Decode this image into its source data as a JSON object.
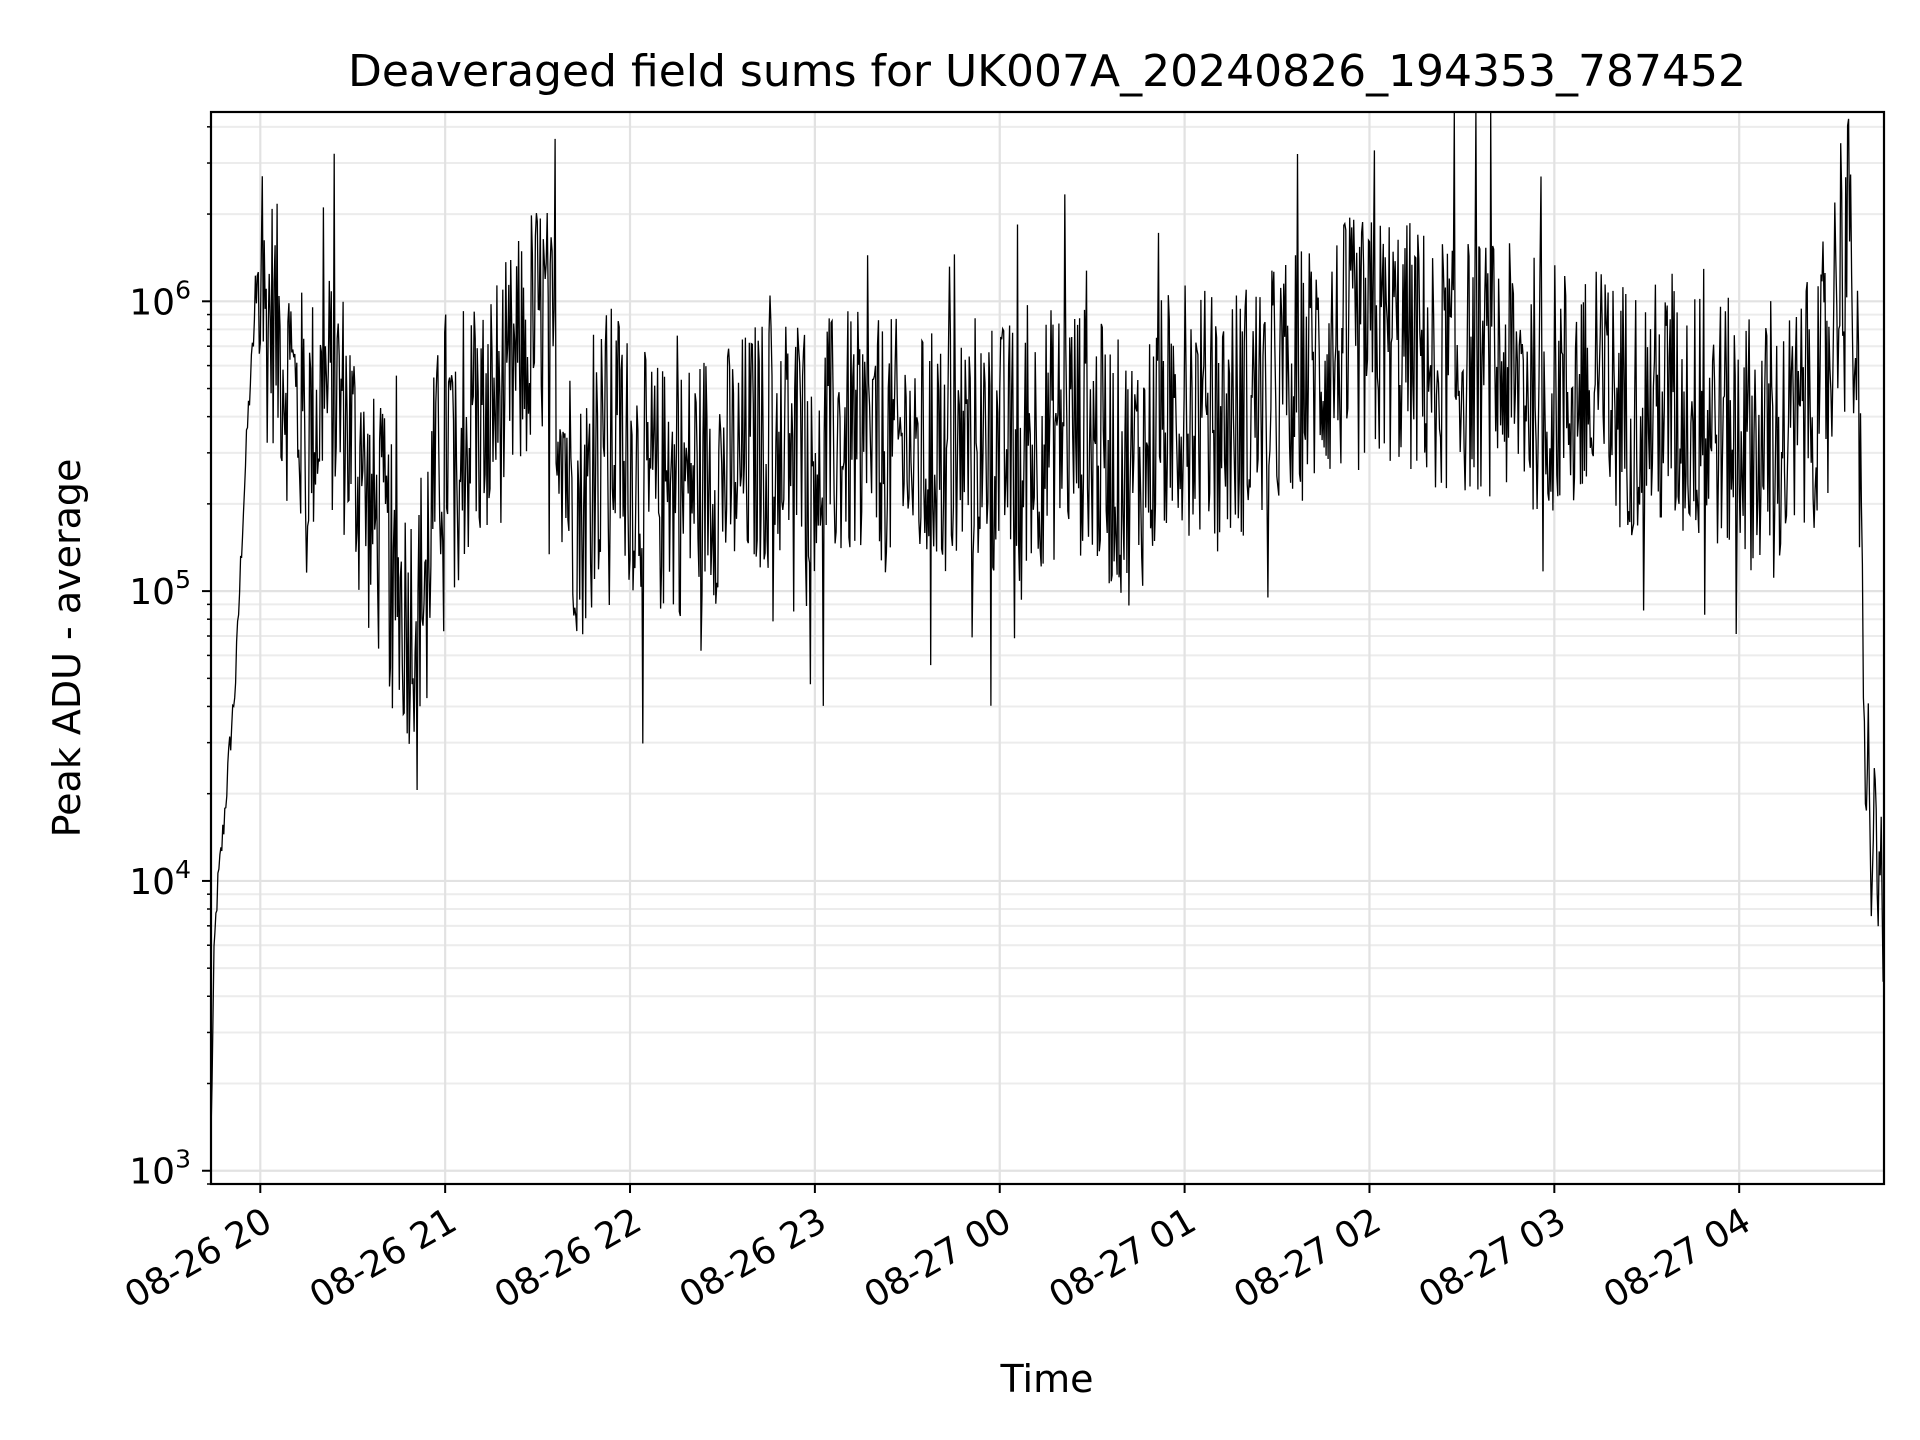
{
  "chart_data": {
    "type": "line",
    "title": "Deaveraged field sums for UK007A_20240826_194353_787452",
    "xlabel": "Time",
    "ylabel": "Peak ADU - average",
    "x_scale": "time",
    "y_scale": "log",
    "xlim": [
      "2024-08-26 19:44",
      "2024-08-27 04:47"
    ],
    "ylim": [
      900,
      4500000
    ],
    "grid": true,
    "legend": "none",
    "x_ticks": [
      {
        "value": "2024-08-26 20:00",
        "label": "08-26 20"
      },
      {
        "value": "2024-08-26 21:00",
        "label": "08-26 21"
      },
      {
        "value": "2024-08-26 22:00",
        "label": "08-26 22"
      },
      {
        "value": "2024-08-26 23:00",
        "label": "08-26 23"
      },
      {
        "value": "2024-08-27 00:00",
        "label": "08-27 00"
      },
      {
        "value": "2024-08-27 01:00",
        "label": "08-27 01"
      },
      {
        "value": "2024-08-27 02:00",
        "label": "08-27 02"
      },
      {
        "value": "2024-08-27 03:00",
        "label": "08-27 03"
      },
      {
        "value": "2024-08-27 04:00",
        "label": "08-27 04"
      }
    ],
    "y_ticks": [
      {
        "value": 1000,
        "base": "10",
        "exp": "3"
      },
      {
        "value": 10000,
        "base": "10",
        "exp": "4"
      },
      {
        "value": 100000,
        "base": "10",
        "exp": "5"
      },
      {
        "value": 1000000,
        "base": "10",
        "exp": "6"
      }
    ],
    "series": [
      {
        "color": "#000000",
        "points": [
          [
            "2024-08-26 19:44",
            1300
          ],
          [
            "2024-08-26 19:45",
            5500
          ],
          [
            "2024-08-26 19:46",
            9000
          ],
          [
            "2024-08-26 19:48",
            15000
          ],
          [
            "2024-08-26 19:50",
            28000
          ],
          [
            "2024-08-26 19:52",
            50000
          ],
          [
            "2024-08-26 19:54",
            150000
          ],
          [
            "2024-08-26 19:56",
            400000
          ],
          [
            "2024-08-26 19:58",
            800000
          ],
          [
            "2024-08-26 20:00",
            850000
          ],
          [
            "2024-08-26 20:04",
            900000
          ],
          [
            "2024-08-26 20:08",
            600000
          ],
          [
            "2024-08-26 20:12",
            420000
          ],
          [
            "2024-08-26 20:16",
            380000
          ],
          [
            "2024-08-26 20:20",
            450000
          ],
          [
            "2024-08-26 20:24",
            500000
          ],
          [
            "2024-08-26 20:28",
            400000
          ],
          [
            "2024-08-26 20:32",
            250000
          ],
          [
            "2024-08-26 20:36",
            180000
          ],
          [
            "2024-08-26 20:40",
            150000
          ],
          [
            "2024-08-26 20:44",
            100000
          ],
          [
            "2024-08-26 20:48",
            80000
          ],
          [
            "2024-08-26 20:52",
            100000
          ],
          [
            "2024-08-26 20:56",
            200000
          ],
          [
            "2024-08-26 21:00",
            350000
          ],
          [
            "2024-08-26 21:04",
            300000
          ],
          [
            "2024-08-26 21:08",
            350000
          ],
          [
            "2024-08-26 21:12",
            380000
          ],
          [
            "2024-08-26 21:16",
            450000
          ],
          [
            "2024-08-26 21:20",
            500000
          ],
          [
            "2024-08-26 21:24",
            600000
          ],
          [
            "2024-08-26 21:28",
            800000
          ],
          [
            "2024-08-26 21:32",
            900000
          ],
          [
            "2024-08-26 21:36",
            600000
          ],
          [
            "2024-08-26 21:40",
            250000
          ],
          [
            "2024-08-26 21:44",
            180000
          ],
          [
            "2024-08-26 21:48",
            250000
          ],
          [
            "2024-08-26 21:52",
            350000
          ],
          [
            "2024-08-26 21:56",
            350000
          ],
          [
            "2024-08-26 22:00",
            280000
          ],
          [
            "2024-08-26 22:06",
            230000
          ],
          [
            "2024-08-26 22:12",
            220000
          ],
          [
            "2024-08-26 22:18",
            230000
          ],
          [
            "2024-08-26 22:24",
            260000
          ],
          [
            "2024-08-26 22:30",
            250000
          ],
          [
            "2024-08-26 22:36",
            280000
          ],
          [
            "2024-08-26 22:42",
            320000
          ],
          [
            "2024-08-26 22:48",
            330000
          ],
          [
            "2024-08-26 22:54",
            350000
          ],
          [
            "2024-08-26 23:00",
            320000
          ],
          [
            "2024-08-26 23:06",
            320000
          ],
          [
            "2024-08-26 23:12",
            340000
          ],
          [
            "2024-08-26 23:18",
            300000
          ],
          [
            "2024-08-26 23:24",
            320000
          ],
          [
            "2024-08-26 23:30",
            300000
          ],
          [
            "2024-08-26 23:36",
            280000
          ],
          [
            "2024-08-26 23:42",
            300000
          ],
          [
            "2024-08-26 23:48",
            320000
          ],
          [
            "2024-08-26 23:54",
            340000
          ],
          [
            "2024-08-27 00:00",
            300000
          ],
          [
            "2024-08-27 00:06",
            320000
          ],
          [
            "2024-08-27 00:12",
            330000
          ],
          [
            "2024-08-27 00:18",
            350000
          ],
          [
            "2024-08-27 00:24",
            380000
          ],
          [
            "2024-08-27 00:30",
            330000
          ],
          [
            "2024-08-27 00:36",
            280000
          ],
          [
            "2024-08-27 00:42",
            250000
          ],
          [
            "2024-08-27 00:48",
            300000
          ],
          [
            "2024-08-27 00:54",
            400000
          ],
          [
            "2024-08-27 01:00",
            450000
          ],
          [
            "2024-08-27 01:06",
            400000
          ],
          [
            "2024-08-27 01:12",
            380000
          ],
          [
            "2024-08-27 01:18",
            420000
          ],
          [
            "2024-08-27 01:24",
            450000
          ],
          [
            "2024-08-27 01:30",
            500000
          ],
          [
            "2024-08-27 01:36",
            550000
          ],
          [
            "2024-08-27 01:42",
            600000
          ],
          [
            "2024-08-27 01:48",
            650000
          ],
          [
            "2024-08-27 01:54",
            700000
          ],
          [
            "2024-08-27 02:00",
            700000
          ],
          [
            "2024-08-27 02:06",
            750000
          ],
          [
            "2024-08-27 02:12",
            700000
          ],
          [
            "2024-08-27 02:18",
            650000
          ],
          [
            "2024-08-27 02:24",
            620000
          ],
          [
            "2024-08-27 02:30",
            600000
          ],
          [
            "2024-08-27 02:36",
            600000
          ],
          [
            "2024-08-27 02:42",
            580000
          ],
          [
            "2024-08-27 02:48",
            550000
          ],
          [
            "2024-08-27 02:54",
            520000
          ],
          [
            "2024-08-27 03:00",
            500000
          ],
          [
            "2024-08-27 03:06",
            480000
          ],
          [
            "2024-08-27 03:12",
            470000
          ],
          [
            "2024-08-27 03:18",
            450000
          ],
          [
            "2024-08-27 03:24",
            440000
          ],
          [
            "2024-08-27 03:30",
            430000
          ],
          [
            "2024-08-27 03:36",
            420000
          ],
          [
            "2024-08-27 03:42",
            400000
          ],
          [
            "2024-08-27 03:48",
            400000
          ],
          [
            "2024-08-27 03:54",
            380000
          ],
          [
            "2024-08-27 04:00",
            350000
          ],
          [
            "2024-08-27 04:06",
            320000
          ],
          [
            "2024-08-27 04:12",
            300000
          ],
          [
            "2024-08-27 04:18",
            350000
          ],
          [
            "2024-08-27 04:24",
            450000
          ],
          [
            "2024-08-27 04:30",
            800000
          ],
          [
            "2024-08-27 04:34",
            2000000
          ],
          [
            "2024-08-27 04:36",
            1500000
          ],
          [
            "2024-08-27 04:38",
            600000
          ],
          [
            "2024-08-27 04:40",
            100000
          ],
          [
            "2024-08-27 04:41",
            15000
          ],
          [
            "2024-08-27 04:42",
            40000
          ],
          [
            "2024-08-27 04:43",
            8000
          ],
          [
            "2024-08-27 04:44",
            25000
          ],
          [
            "2024-08-27 04:45",
            8000
          ],
          [
            "2024-08-27 04:46",
            15000
          ],
          [
            "2024-08-27 04:47",
            3500
          ]
        ]
      }
    ]
  }
}
